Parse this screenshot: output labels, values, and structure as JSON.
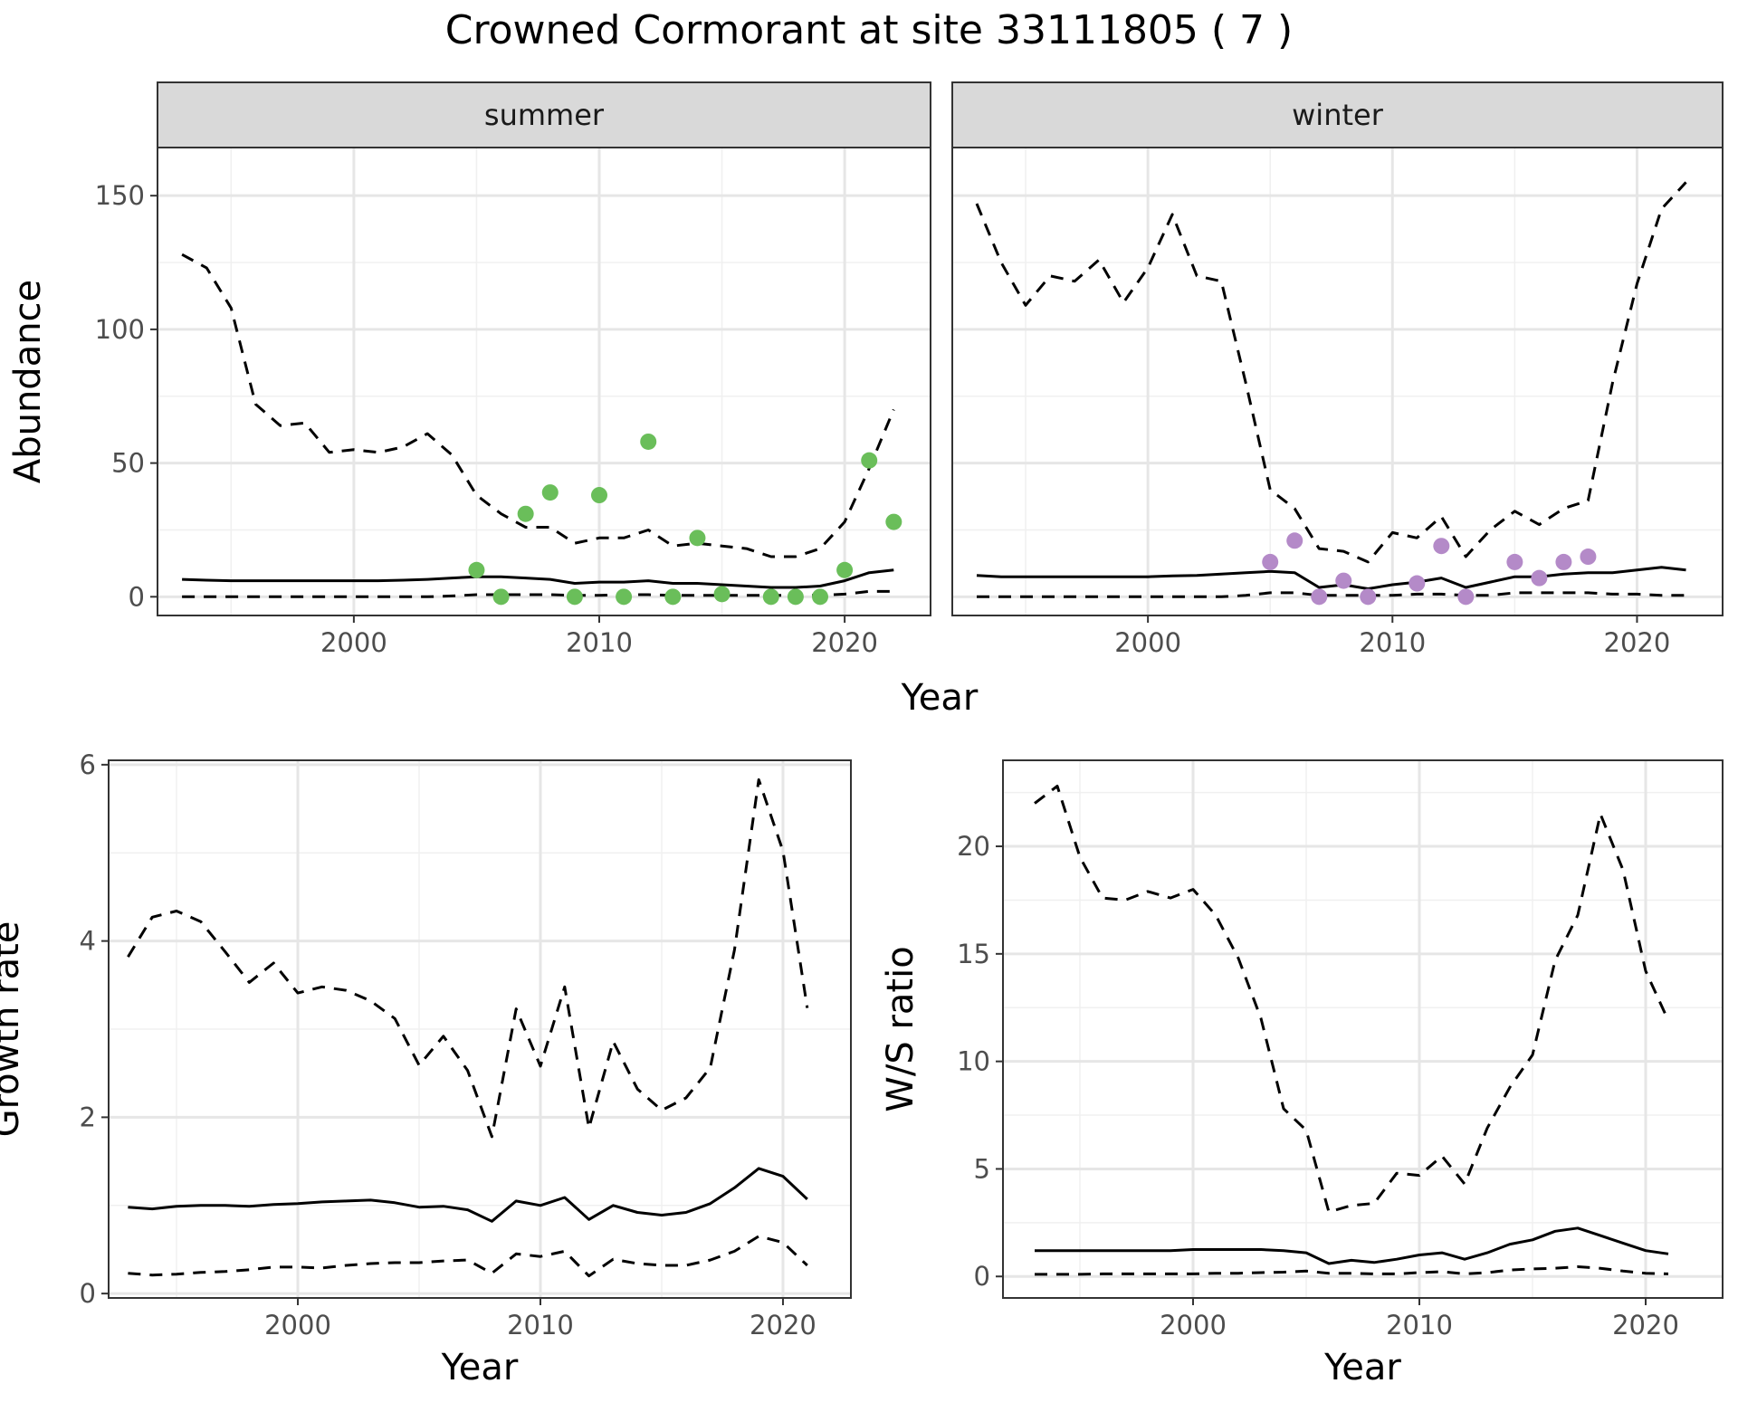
{
  "figure": {
    "title": "Crowned Cormorant at site 33111805 ( 7 )"
  },
  "chart_data": [
    {
      "type": "line",
      "panel": "summer",
      "facet_label": "summer",
      "xlabel": "Year",
      "ylabel": "Abundance",
      "xlim": [
        1992,
        2023.5
      ],
      "ylim": [
        -7,
        168
      ],
      "xticks": [
        2000,
        2010,
        2020
      ],
      "yticks": [
        0,
        50,
        100,
        150
      ],
      "grid": true,
      "x": [
        1993,
        1994,
        1995,
        1996,
        1997,
        1998,
        1999,
        2000,
        2001,
        2002,
        2003,
        2004,
        2005,
        2006,
        2007,
        2008,
        2009,
        2010,
        2011,
        2012,
        2013,
        2014,
        2015,
        2016,
        2017,
        2018,
        2019,
        2020,
        2021,
        2022
      ],
      "series": [
        {
          "style": "solid",
          "values": [
            6.5,
            6.2,
            6.0,
            6.0,
            6.0,
            6.0,
            6.0,
            6.0,
            6.0,
            6.2,
            6.5,
            7.0,
            7.5,
            7.5,
            7.0,
            6.5,
            5.0,
            5.5,
            5.5,
            6.0,
            5.0,
            5.0,
            4.5,
            4.0,
            3.5,
            3.5,
            4.0,
            6.0,
            9.0,
            10.0
          ]
        },
        {
          "style": "dashed",
          "values": [
            128,
            123,
            108,
            72,
            64,
            65,
            54,
            55,
            54,
            56,
            61,
            53,
            38,
            31,
            26,
            26,
            20,
            22,
            22,
            25,
            19,
            20,
            19,
            18,
            15,
            15,
            18,
            28,
            48,
            70
          ]
        },
        {
          "style": "dashed",
          "values": [
            0,
            0,
            0,
            0,
            0,
            0,
            0,
            0,
            0,
            0,
            0,
            0.3,
            0.8,
            0.8,
            0.8,
            0.8,
            0.5,
            0.5,
            0.8,
            0.8,
            0.5,
            0.5,
            0.5,
            0.5,
            0.5,
            0.5,
            0.5,
            1.0,
            2.0,
            2.0
          ]
        }
      ],
      "points": {
        "color": "#6ABE5A",
        "x": [
          2005,
          2006,
          2007,
          2008,
          2009,
          2010,
          2011,
          2012,
          2013,
          2014,
          2015,
          2017,
          2018,
          2019,
          2020,
          2021,
          2022
        ],
        "y": [
          10,
          0,
          31,
          39,
          0,
          38,
          0,
          58,
          0,
          22,
          1,
          0,
          0,
          0,
          10,
          51,
          28
        ]
      }
    },
    {
      "type": "line",
      "panel": "winter",
      "facet_label": "winter",
      "xlabel": "Year",
      "ylabel": "Abundance",
      "xlim": [
        1992,
        2023.5
      ],
      "ylim": [
        -7,
        168
      ],
      "xticks": [
        2000,
        2010,
        2020
      ],
      "yticks": [
        0,
        50,
        100,
        150
      ],
      "grid": true,
      "x": [
        1993,
        1994,
        1995,
        1996,
        1997,
        1998,
        1999,
        2000,
        2001,
        2002,
        2003,
        2004,
        2005,
        2006,
        2007,
        2008,
        2009,
        2010,
        2011,
        2012,
        2013,
        2014,
        2015,
        2016,
        2017,
        2018,
        2019,
        2020,
        2021,
        2022
      ],
      "series": [
        {
          "style": "solid",
          "values": [
            8.0,
            7.5,
            7.5,
            7.5,
            7.5,
            7.5,
            7.5,
            7.5,
            7.8,
            8.0,
            8.5,
            9.0,
            9.5,
            9.0,
            3.5,
            4.5,
            3.0,
            4.5,
            5.5,
            7.0,
            3.5,
            5.5,
            7.5,
            7.5,
            8.5,
            9.0,
            9.0,
            10.0,
            11.0,
            10.0
          ]
        },
        {
          "style": "dashed",
          "values": [
            147,
            125,
            109,
            120,
            118,
            126,
            110,
            123,
            143,
            120,
            118,
            80,
            40,
            33,
            18,
            17,
            13,
            24,
            22,
            30,
            15,
            25,
            32,
            27,
            33,
            36,
            80,
            117,
            145,
            155
          ]
        },
        {
          "style": "dashed",
          "values": [
            0,
            0,
            0,
            0,
            0,
            0,
            0,
            0,
            0,
            0,
            0,
            0.5,
            1.5,
            1.5,
            0.5,
            0.5,
            0.5,
            0.5,
            1.0,
            1.0,
            0.5,
            0.5,
            1.5,
            1.5,
            1.5,
            1.5,
            1.0,
            1.0,
            0.5,
            0.5
          ]
        }
      ],
      "points": {
        "color": "#B48AC8",
        "x": [
          2005,
          2006,
          2007,
          2008,
          2009,
          2011,
          2012,
          2013,
          2015,
          2016,
          2017,
          2018
        ],
        "y": [
          13,
          21,
          0,
          6,
          0,
          5,
          19,
          0,
          13,
          7,
          13,
          15
        ]
      }
    },
    {
      "type": "line",
      "panel": "growth",
      "xlabel": "Year",
      "ylabel": "Growth rate",
      "xlim": [
        1992.2,
        2022.8
      ],
      "ylim": [
        -0.05,
        6.05
      ],
      "xticks": [
        2000,
        2010,
        2020
      ],
      "yticks": [
        0,
        2,
        4,
        6
      ],
      "grid": true,
      "x": [
        1993,
        1994,
        1995,
        1996,
        1997,
        1998,
        1999,
        2000,
        2001,
        2002,
        2003,
        2004,
        2005,
        2006,
        2007,
        2008,
        2009,
        2010,
        2011,
        2012,
        2013,
        2014,
        2015,
        2016,
        2017,
        2018,
        2019,
        2020,
        2021
      ],
      "series": [
        {
          "style": "solid",
          "values": [
            0.98,
            0.96,
            0.99,
            1.0,
            1.0,
            0.99,
            1.01,
            1.02,
            1.04,
            1.05,
            1.06,
            1.03,
            0.98,
            0.99,
            0.95,
            0.82,
            1.05,
            1.0,
            1.09,
            0.84,
            1.0,
            0.92,
            0.89,
            0.92,
            1.02,
            1.2,
            1.42,
            1.33,
            1.07
          ]
        },
        {
          "style": "dashed",
          "values": [
            3.82,
            4.27,
            4.34,
            4.22,
            3.88,
            3.53,
            3.75,
            3.41,
            3.48,
            3.44,
            3.32,
            3.12,
            2.59,
            2.92,
            2.53,
            1.78,
            3.23,
            2.58,
            3.48,
            1.88,
            2.86,
            2.32,
            2.08,
            2.22,
            2.56,
            3.9,
            5.83,
            5.02,
            3.24
          ]
        },
        {
          "style": "dashed",
          "values": [
            0.23,
            0.21,
            0.22,
            0.24,
            0.25,
            0.27,
            0.3,
            0.3,
            0.29,
            0.32,
            0.34,
            0.35,
            0.35,
            0.37,
            0.38,
            0.23,
            0.45,
            0.42,
            0.48,
            0.2,
            0.39,
            0.34,
            0.32,
            0.32,
            0.38,
            0.48,
            0.65,
            0.58,
            0.32
          ]
        }
      ]
    },
    {
      "type": "line",
      "panel": "ws-ratio",
      "xlabel": "Year",
      "ylabel": "W/S ratio",
      "xlim": [
        1991.6,
        2023.4
      ],
      "ylim": [
        -1.0,
        24.0
      ],
      "xticks": [
        2000,
        2010,
        2020
      ],
      "yticks": [
        0,
        5,
        10,
        15,
        20
      ],
      "grid": true,
      "x": [
        1993,
        1994,
        1995,
        1996,
        1997,
        1998,
        1999,
        2000,
        2001,
        2002,
        2003,
        2004,
        2005,
        2006,
        2007,
        2008,
        2009,
        2010,
        2011,
        2012,
        2013,
        2014,
        2015,
        2016,
        2017,
        2018,
        2019,
        2020,
        2021
      ],
      "series": [
        {
          "style": "solid",
          "values": [
            1.2,
            1.2,
            1.2,
            1.2,
            1.2,
            1.2,
            1.2,
            1.25,
            1.25,
            1.25,
            1.25,
            1.2,
            1.1,
            0.6,
            0.75,
            0.65,
            0.8,
            1.0,
            1.1,
            0.8,
            1.1,
            1.5,
            1.7,
            2.1,
            2.25,
            1.9,
            1.55,
            1.2,
            1.05
          ]
        },
        {
          "style": "dashed",
          "values": [
            22.0,
            22.8,
            19.5,
            17.6,
            17.5,
            17.9,
            17.6,
            18.0,
            16.8,
            14.8,
            12.0,
            7.8,
            6.8,
            3.0,
            3.3,
            3.4,
            4.8,
            4.7,
            5.6,
            4.3,
            6.9,
            8.8,
            10.3,
            14.7,
            16.8,
            21.5,
            18.9,
            14.2,
            11.9
          ]
        },
        {
          "style": "dashed",
          "values": [
            0.1,
            0.1,
            0.1,
            0.12,
            0.12,
            0.12,
            0.12,
            0.12,
            0.15,
            0.15,
            0.18,
            0.2,
            0.25,
            0.15,
            0.15,
            0.12,
            0.12,
            0.18,
            0.22,
            0.12,
            0.18,
            0.3,
            0.35,
            0.38,
            0.45,
            0.38,
            0.25,
            0.15,
            0.12
          ]
        }
      ]
    }
  ]
}
